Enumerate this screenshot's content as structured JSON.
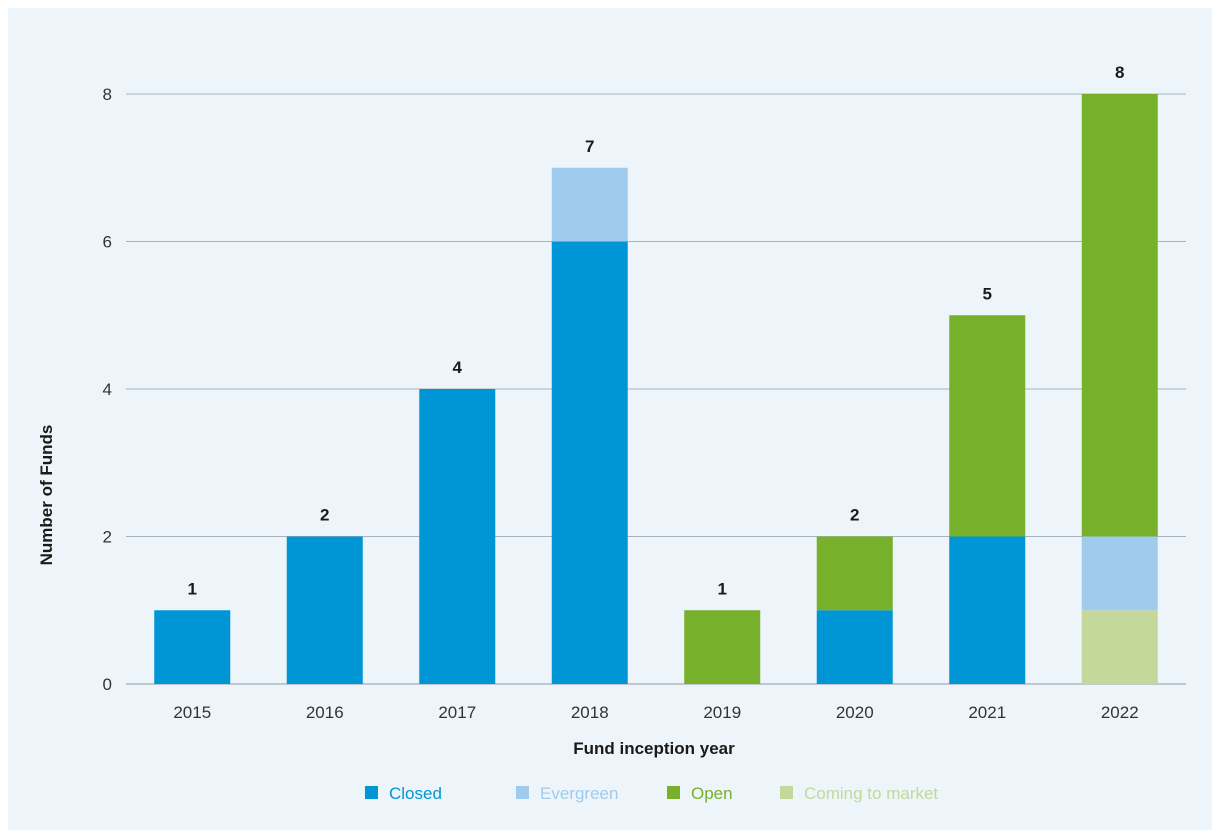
{
  "chart_data": {
    "type": "bar",
    "stacked": true,
    "categories": [
      "2015",
      "2016",
      "2017",
      "2018",
      "2019",
      "2020",
      "2021",
      "2022"
    ],
    "series": [
      {
        "name": "Closed",
        "color": "#0096d6",
        "values": [
          1,
          2,
          4,
          6,
          0,
          1,
          2,
          0
        ]
      },
      {
        "name": "Evergreen",
        "color": "#a1cbec",
        "values": [
          0,
          0,
          0,
          1,
          0,
          0,
          0,
          1
        ]
      },
      {
        "name": "Open",
        "color": "#77b02a",
        "values": [
          0,
          0,
          0,
          0,
          1,
          1,
          3,
          6
        ]
      },
      {
        "name": "Coming to market",
        "color": "#c3d89a",
        "values": [
          0,
          0,
          0,
          0,
          0,
          0,
          0,
          1
        ]
      }
    ],
    "stack_order": [
      "Coming to market",
      "Closed",
      "Evergreen",
      "Open"
    ],
    "totals": [
      "1",
      "2",
      "4",
      "7",
      "1",
      "2",
      "5",
      "8"
    ],
    "xlabel": "Fund inception year",
    "ylabel": "Number of Funds",
    "ylim": [
      0,
      8
    ],
    "yticks": [
      "0",
      "2",
      "4",
      "6",
      "8"
    ],
    "grid": "horizontal",
    "legend_position": "bottom"
  }
}
